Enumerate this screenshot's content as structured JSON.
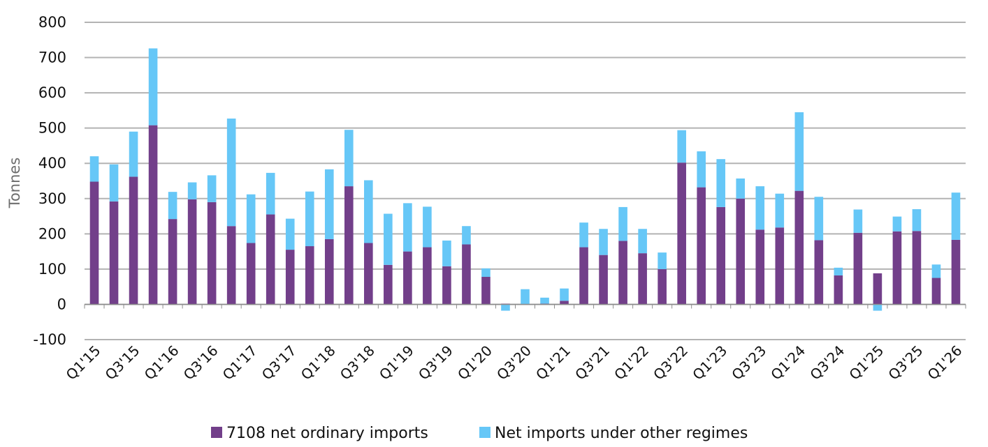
{
  "colors": {
    "series1": "#723f8a",
    "series2": "#66c7f7",
    "grid": "#b3b3b3",
    "axis": "#8c8c8c"
  },
  "chart_data": {
    "type": "bar",
    "stacked": true,
    "title": "",
    "xlabel": "",
    "ylabel": "Tonnes",
    "ylim": [
      -100,
      800
    ],
    "yticks": [
      -100,
      0,
      100,
      200,
      300,
      400,
      500,
      600,
      700,
      800
    ],
    "grid": true,
    "legend_position": "bottom",
    "categories": [
      "Q1'15",
      "Q2'15",
      "Q3'15",
      "Q4'15",
      "Q1'16",
      "Q2'16",
      "Q3'16",
      "Q4'16",
      "Q1'17",
      "Q2'17",
      "Q3'17",
      "Q4'17",
      "Q1'18",
      "Q2'18",
      "Q3'18",
      "Q4'18",
      "Q1'19",
      "Q2'19",
      "Q3'19",
      "Q4'19",
      "Q1'20",
      "Q2'20",
      "Q3'20",
      "Q4'20",
      "Q1'21",
      "Q2'21",
      "Q3'21",
      "Q4'21",
      "Q1'22",
      "Q2'22",
      "Q3'22",
      "Q4'22",
      "Q1'23",
      "Q2'23",
      "Q3'23",
      "Q4'23",
      "Q1'24",
      "Q2'24",
      "Q3'24",
      "Q4'24",
      "Q1'25",
      "Q2'25",
      "Q3'25",
      "Q4'25",
      "Q1'26"
    ],
    "tick_labels": [
      "Q1'15",
      "Q3'15",
      "Q1'16",
      "Q3'16",
      "Q1'17",
      "Q3'17",
      "Q1'18",
      "Q3'18",
      "Q1'19",
      "Q3'19",
      "Q1'20",
      "Q3'20",
      "Q1'21",
      "Q3'21",
      "Q1'22",
      "Q3'22",
      "Q1'23",
      "Q3'23",
      "Q1'24",
      "Q3'24",
      "Q1'25",
      "Q3'25",
      "Q1'26"
    ],
    "series": [
      {
        "name": "7108 net ordinary imports",
        "color": "#723f8a",
        "values": [
          348,
          292,
          362,
          508,
          242,
          298,
          290,
          222,
          174,
          255,
          155,
          165,
          185,
          335,
          174,
          112,
          150,
          162,
          108,
          170,
          78,
          2,
          1,
          2,
          10,
          162,
          140,
          180,
          145,
          100,
          402,
          332,
          276,
          300,
          212,
          218,
          322,
          182,
          82,
          203,
          88,
          207,
          208,
          75,
          183
        ]
      },
      {
        "name": "Net imports under other regimes",
        "color": "#66c7f7",
        "values": [
          72,
          105,
          128,
          218,
          77,
          48,
          76,
          305,
          138,
          118,
          88,
          155,
          198,
          160,
          178,
          145,
          137,
          115,
          73,
          52,
          24,
          -18,
          42,
          17,
          35,
          70,
          74,
          96,
          69,
          47,
          92,
          102,
          136,
          57,
          123,
          96,
          223,
          123,
          22,
          66,
          -18,
          42,
          62,
          38,
          134
        ]
      }
    ]
  }
}
